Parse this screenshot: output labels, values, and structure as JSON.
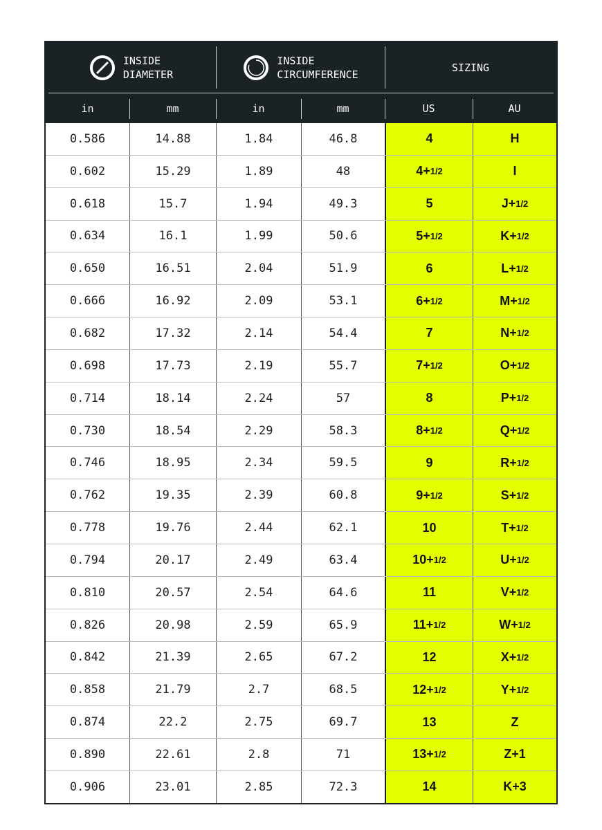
{
  "header": {
    "diameter": [
      "INSIDE",
      "DIAMETER"
    ],
    "circumference": [
      "INSIDE",
      "CIRCUMFERENCE"
    ],
    "sizing": "SIZING",
    "units": [
      "in",
      "mm",
      "in",
      "mm",
      "US",
      "AU"
    ]
  },
  "icons": {
    "diameter": "diameter-circle-icon",
    "circumference": "circumference-circle-icon"
  },
  "colors": {
    "header_bg": "#1a2226",
    "sizing_bg": "#e4ff00"
  },
  "rows": [
    [
      "0.586",
      "14.88",
      "1.84",
      "46.8",
      [
        "4",
        ""
      ],
      [
        "H",
        ""
      ]
    ],
    [
      "0.602",
      "15.29",
      "1.89",
      "48",
      [
        "4+",
        "1/2"
      ],
      [
        "I",
        ""
      ]
    ],
    [
      "0.618",
      "15.7",
      "1.94",
      "49.3",
      [
        "5",
        ""
      ],
      [
        "J+",
        "1/2"
      ]
    ],
    [
      "0.634",
      "16.1",
      "1.99",
      "50.6",
      [
        "5+",
        "1/2"
      ],
      [
        "K+",
        "1/2"
      ]
    ],
    [
      "0.650",
      "16.51",
      "2.04",
      "51.9",
      [
        "6",
        ""
      ],
      [
        "L+",
        "1/2"
      ]
    ],
    [
      "0.666",
      "16.92",
      "2.09",
      "53.1",
      [
        "6+",
        "1/2"
      ],
      [
        "M+",
        "1/2"
      ]
    ],
    [
      "0.682",
      "17.32",
      "2.14",
      "54.4",
      [
        "7",
        ""
      ],
      [
        "N+",
        "1/2"
      ]
    ],
    [
      "0.698",
      "17.73",
      "2.19",
      "55.7",
      [
        "7+",
        "1/2"
      ],
      [
        "O+",
        "1/2"
      ]
    ],
    [
      "0.714",
      "18.14",
      "2.24",
      "57",
      [
        "8",
        ""
      ],
      [
        "P+",
        "1/2"
      ]
    ],
    [
      "0.730",
      "18.54",
      "2.29",
      "58.3",
      [
        "8+",
        "1/2"
      ],
      [
        "Q+",
        "1/2"
      ]
    ],
    [
      "0.746",
      "18.95",
      "2.34",
      "59.5",
      [
        "9",
        ""
      ],
      [
        "R+",
        "1/2"
      ]
    ],
    [
      "0.762",
      "19.35",
      "2.39",
      "60.8",
      [
        "9+",
        "1/2"
      ],
      [
        "S+",
        "1/2"
      ]
    ],
    [
      "0.778",
      "19.76",
      "2.44",
      "62.1",
      [
        "10",
        ""
      ],
      [
        "T+",
        "1/2"
      ]
    ],
    [
      "0.794",
      "20.17",
      "2.49",
      "63.4",
      [
        "10+",
        "1/2"
      ],
      [
        "U+",
        "1/2"
      ]
    ],
    [
      "0.810",
      "20.57",
      "2.54",
      "64.6",
      [
        "11",
        ""
      ],
      [
        "V+",
        "1/2"
      ]
    ],
    [
      "0.826",
      "20.98",
      "2.59",
      "65.9",
      [
        "11+",
        "1/2"
      ],
      [
        "W+",
        "1/2"
      ]
    ],
    [
      "0.842",
      "21.39",
      "2.65",
      "67.2",
      [
        "12",
        ""
      ],
      [
        "X+",
        "1/2"
      ]
    ],
    [
      "0.858",
      "21.79",
      "2.7",
      "68.5",
      [
        "12+",
        "1/2"
      ],
      [
        "Y+",
        "1/2"
      ]
    ],
    [
      "0.874",
      "22.2",
      "2.75",
      "69.7",
      [
        "13",
        ""
      ],
      [
        "Z",
        ""
      ]
    ],
    [
      "0.890",
      "22.61",
      "2.8",
      "71",
      [
        "13+",
        "1/2"
      ],
      [
        "Z+1",
        ""
      ]
    ],
    [
      "0.906",
      "23.01",
      "2.85",
      "72.3",
      [
        "14",
        ""
      ],
      [
        "K+3",
        ""
      ]
    ]
  ]
}
